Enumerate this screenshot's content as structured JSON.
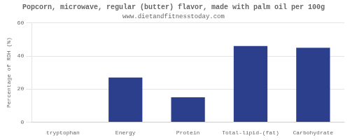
{
  "chart_data": {
    "type": "bar",
    "title": "Popcorn, microwave, regular (butter) flavor, made with palm oil per 100g",
    "subtitle": "www.dietandfitnesstoday.com",
    "categories": [
      "tryptophan",
      "Energy",
      "Protein",
      "Total-lipid-(fat)",
      "Carbohydrate"
    ],
    "values": [
      0,
      27,
      15,
      46,
      45
    ],
    "color": "#2b3f8c",
    "ylabel": "Percentage of RDH (%)",
    "ylim": [
      0,
      60
    ],
    "yticks": [
      0,
      20,
      40,
      60
    ],
    "grid": true
  }
}
